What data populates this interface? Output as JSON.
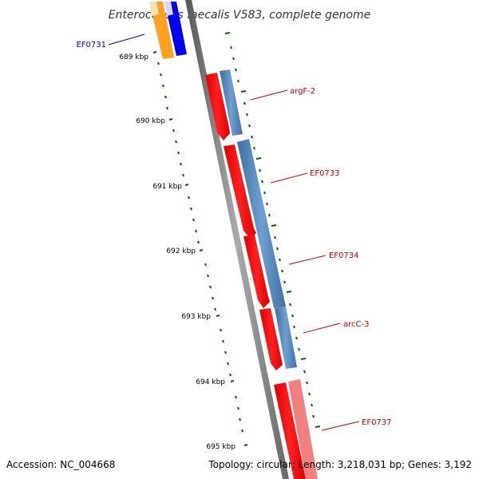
{
  "title": "Enterococcus faecalis V583, complete genome",
  "footer": {
    "accession": "Accession: NC_004668",
    "summary": "Topology: circular; Length: 3,218,031 bp; Genes: 3,192"
  },
  "colors": {
    "backbone": "#7a7a7a",
    "forward_strand": "#ff0000",
    "reverse_strand": "#4f81bd",
    "tick": "#006400",
    "label_forward": "#cc0000",
    "label_other": "#0000cc"
  },
  "kbp_labels": [
    "689 kbp",
    "690 kbp",
    "691 kbp",
    "692 kbp",
    "693 kbp",
    "694 kbp",
    "695 kbp"
  ],
  "gene_labels": [
    "EF0731",
    "argF-2",
    "EF0733",
    "EF0734",
    "arcC-3",
    "EF0737"
  ]
}
